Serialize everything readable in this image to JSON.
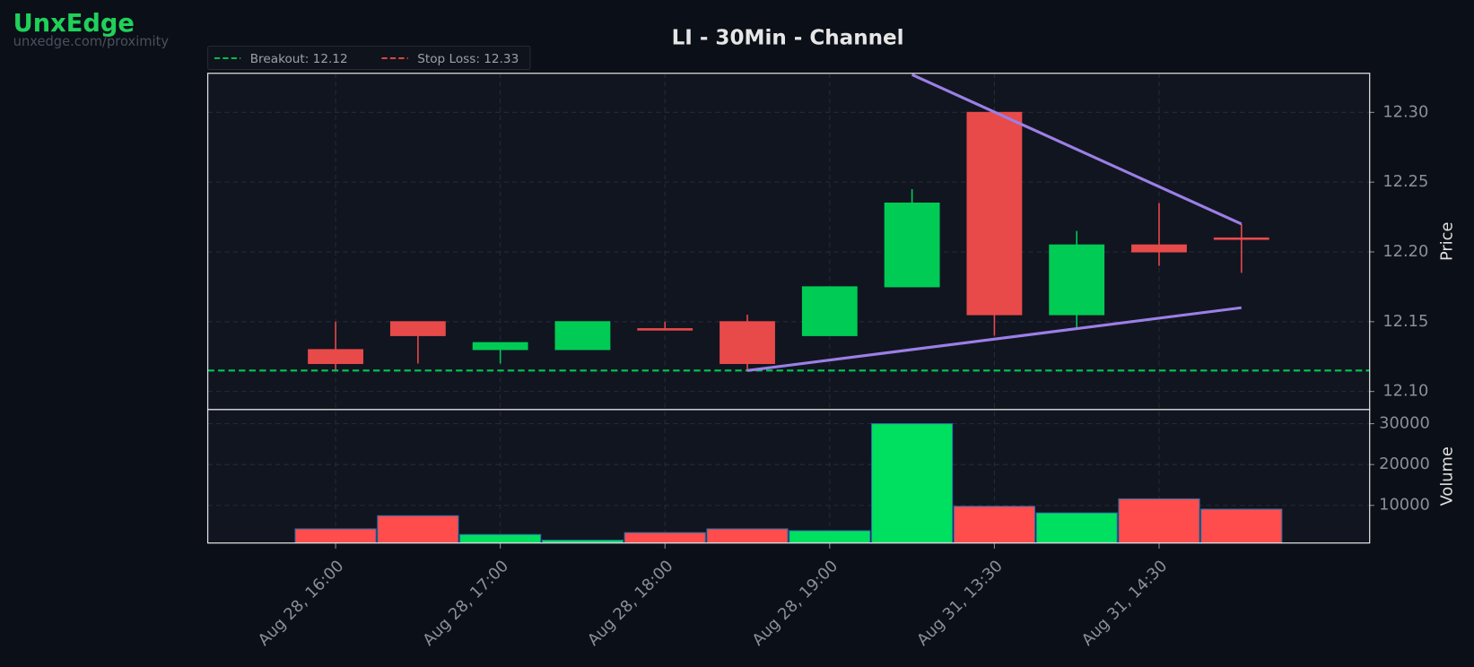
{
  "logo": {
    "name": "UnxEdge",
    "url": "unxedge.com/proximity"
  },
  "chart_data": {
    "type": "candlestick",
    "title": "LI - 30Min - Channel",
    "ylabel": "Price",
    "categories": [
      "Aug 28, 16:00",
      null,
      "Aug 28, 17:00",
      null,
      "Aug 28, 18:00",
      null,
      "Aug 28, 19:00",
      null,
      "Aug 31, 13:30",
      null,
      "Aug 31, 14:30",
      null
    ],
    "open": [
      12.13,
      12.15,
      12.13,
      12.13,
      12.145,
      12.15,
      12.14,
      12.175,
      12.3,
      12.155,
      12.205,
      12.21
    ],
    "high": [
      12.15,
      12.15,
      12.135,
      12.15,
      12.15,
      12.155,
      12.175,
      12.245,
      12.3,
      12.215,
      12.235,
      12.22
    ],
    "low": [
      12.115,
      12.12,
      12.12,
      12.13,
      12.145,
      12.115,
      12.14,
      12.175,
      12.14,
      12.145,
      12.19,
      12.185
    ],
    "close": [
      12.12,
      12.14,
      12.135,
      12.15,
      12.145,
      12.12,
      12.175,
      12.235,
      12.155,
      12.205,
      12.2,
      12.21
    ],
    "up_color": "#00cc55",
    "down_color": "#e84a4a",
    "ylim": [
      12.087,
      12.328
    ],
    "yticks": [
      {
        "value": 12.1,
        "label": "12.10"
      },
      {
        "value": 12.15,
        "label": "12.15"
      },
      {
        "value": 12.2,
        "label": "12.20"
      },
      {
        "value": 12.25,
        "label": "12.25"
      },
      {
        "value": 12.3,
        "label": "12.30"
      }
    ],
    "grid": true,
    "levels": [
      {
        "name": "Breakout: 12.12",
        "value": 12.115,
        "color": "#00c853"
      },
      {
        "name": "Stop Loss: 12.33",
        "value": 12.33,
        "color": "#e84a4a"
      }
    ],
    "trendlines": [
      {
        "color": "#9b7fe6",
        "x": [
          7,
          11
        ],
        "y": [
          12.327,
          12.22
        ]
      },
      {
        "color": "#9b7fe6",
        "x": [
          5,
          11
        ],
        "y": [
          12.115,
          12.16
        ]
      }
    ],
    "volume": {
      "ylabel": "Volume",
      "values": [
        4250,
        7470,
        2870,
        1500,
        3330,
        4250,
        3800,
        30000,
        9770,
        8160,
        11600,
        9080
      ],
      "up_color": "#00e060",
      "down_color": "#ff4d4d",
      "ylim": [
        800,
        33450
      ],
      "yticks": [
        10000,
        20000,
        30000
      ]
    }
  }
}
